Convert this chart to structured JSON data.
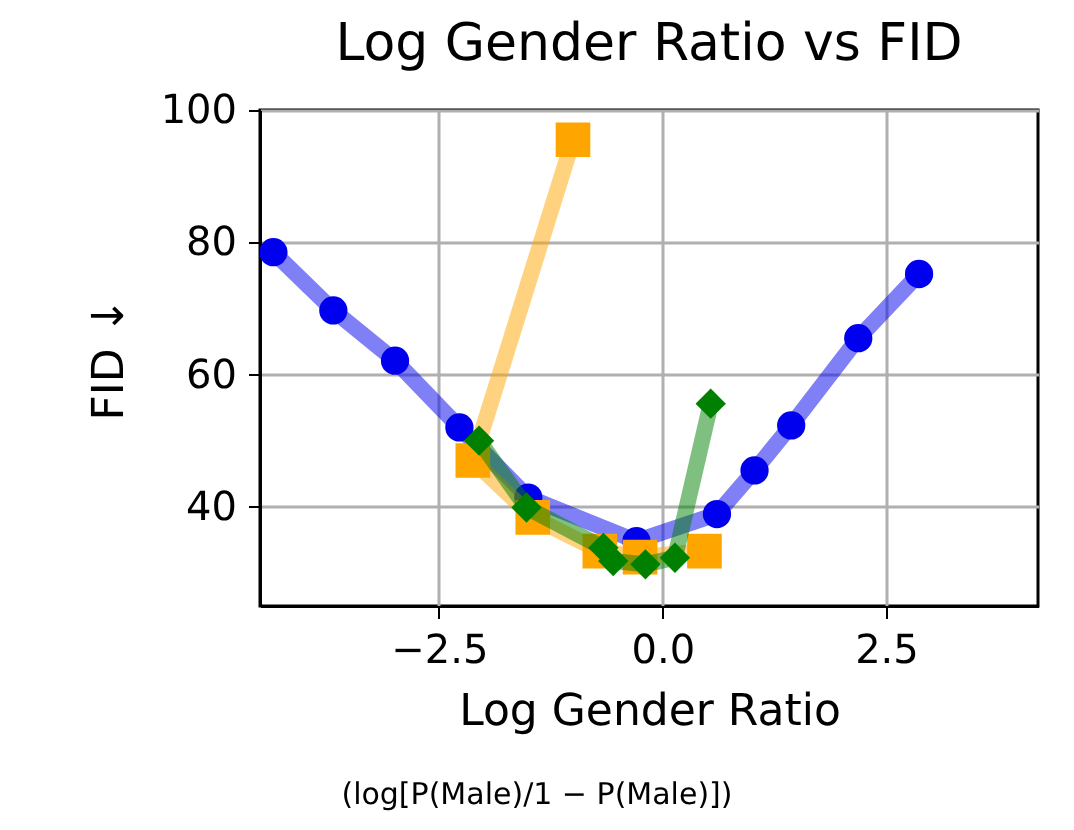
{
  "chart_data": {
    "type": "line",
    "title": "Log Gender Ratio vs FID",
    "xlabel": "Log Gender Ratio",
    "ylabel": "FID ↓",
    "annotations": [
      "(log[P(Male)/1 − P(Male)])"
    ],
    "xlim": [
      -4.5,
      4.2
    ],
    "ylim": [
      25,
      100
    ],
    "xticks": [
      {
        "value": -2.5,
        "label": "−2.5"
      },
      {
        "value": 0,
        "label": "0.0"
      },
      {
        "value": 2.5,
        "label": "2.5"
      }
    ],
    "yticks": [
      40,
      60,
      80,
      100
    ],
    "grid": true,
    "series": [
      {
        "color": "#0000ee",
        "marker": "circle",
        "x": [
          -4.35,
          -3.68,
          -2.99,
          -2.27,
          -1.5,
          -0.29,
          0.61,
          1.03,
          1.44,
          2.19,
          2.87
        ],
        "values": [
          78.5,
          69.7,
          62.1,
          52.0,
          41.4,
          34.8,
          38.9,
          45.5,
          52.3,
          65.5,
          75.2
        ]
      },
      {
        "color": "#ffa500",
        "marker": "square",
        "x": [
          -1.0,
          -2.12,
          -1.45,
          -0.7,
          -0.25,
          0.47
        ],
        "values": [
          95.5,
          47.0,
          38.4,
          33.3,
          32.4,
          33.3
        ]
      },
      {
        "color": "#008000",
        "marker": "diamond",
        "x": [
          -2.05,
          -1.52,
          -0.66,
          -0.55,
          -0.19,
          0.14,
          0.54
        ],
        "values": [
          50.0,
          39.9,
          33.8,
          31.8,
          31.3,
          32.3,
          55.6
        ]
      }
    ]
  }
}
